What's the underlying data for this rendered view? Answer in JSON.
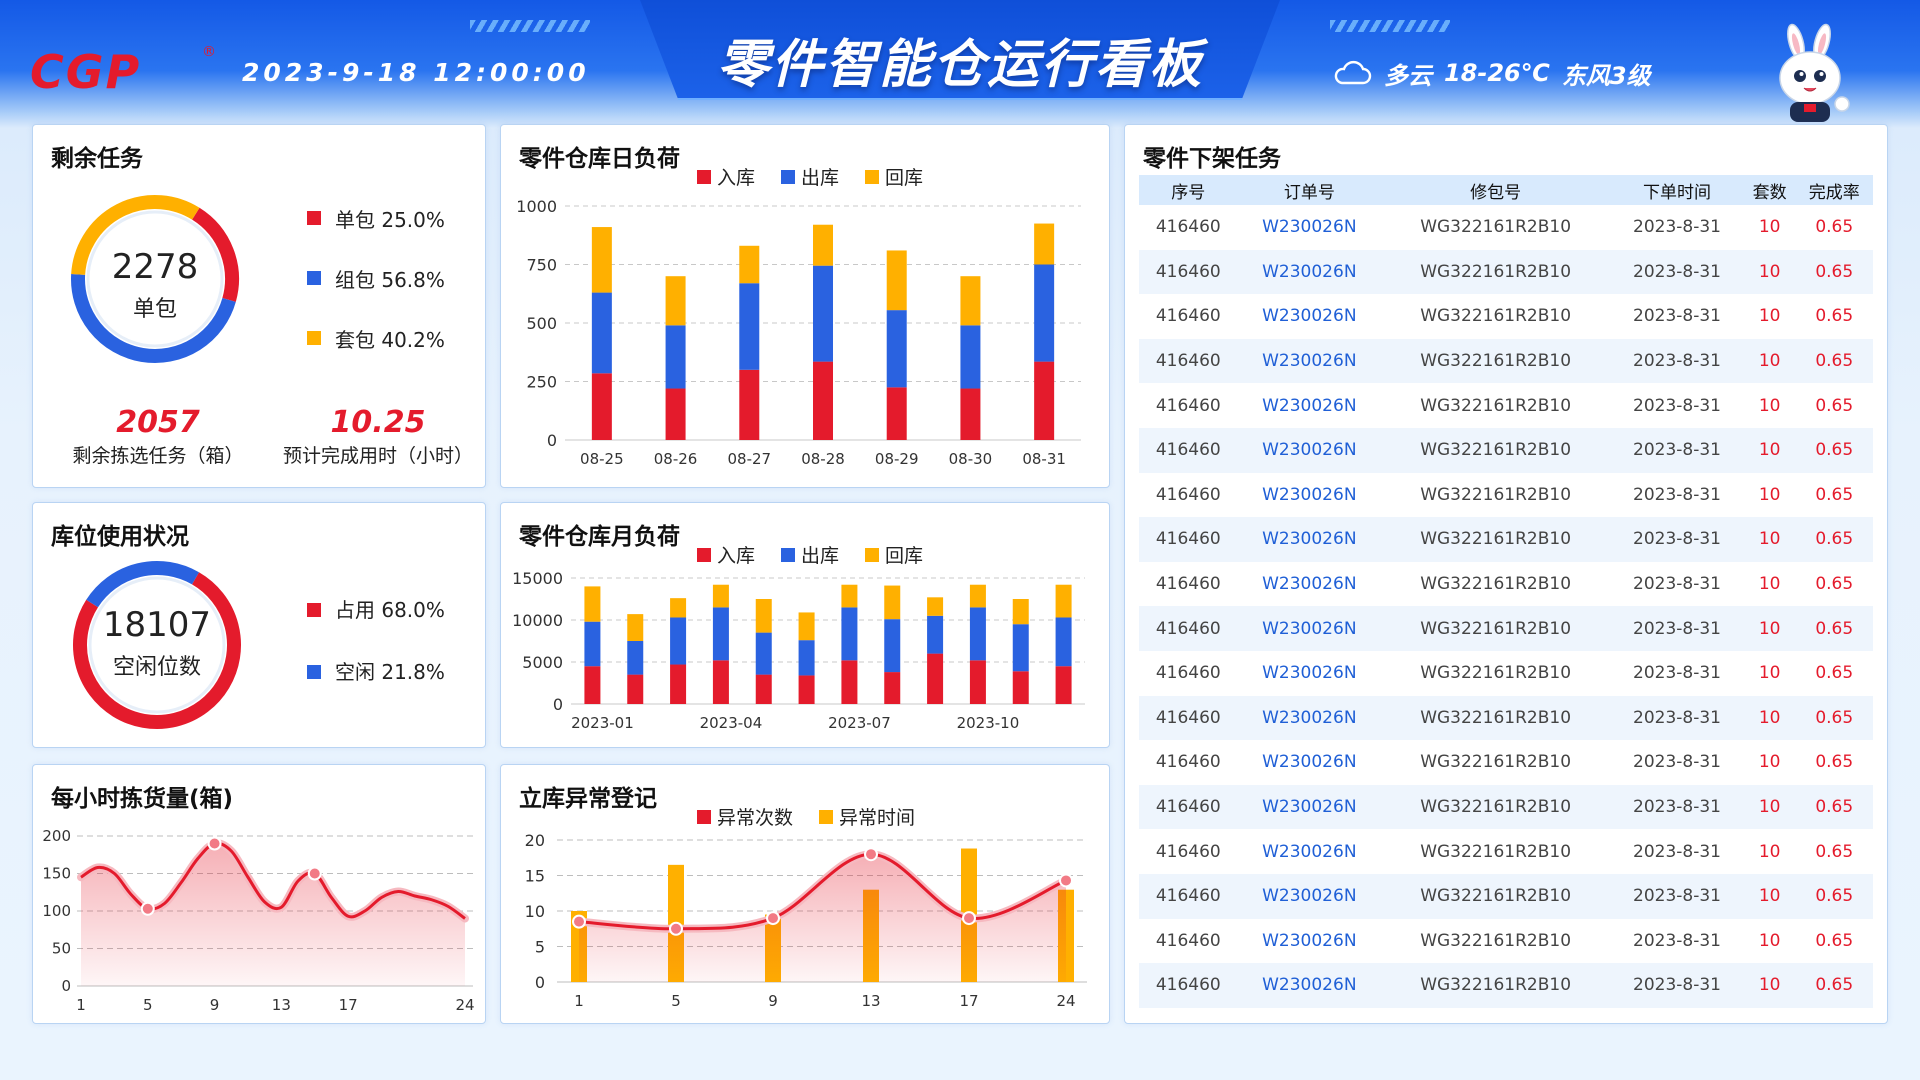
{
  "header": {
    "logo_text": "CGP",
    "logo_reg": "®",
    "datetime": "2023-9-18   12:00:00",
    "title": "零件智能仓运行看板",
    "weather": {
      "condition": "多云",
      "temp": "18-26℃",
      "wind": "东风3级",
      "icon": "cloud-icon"
    },
    "mascot_icon": "rabbit-mascot-icon"
  },
  "colors": {
    "red": "#e41b2c",
    "blue": "#2a62e0",
    "orange": "#ffb000"
  },
  "remaining": {
    "title": "剩余任务",
    "center_value": "2278",
    "center_label": "单包",
    "legend": [
      {
        "label": "单包",
        "value": "25.0%",
        "color": "#e41b2c",
        "share": 25.0
      },
      {
        "label": "组包",
        "value": "56.8%",
        "color": "#2a62e0",
        "share": 56.8
      },
      {
        "label": "套包",
        "value": "40.2%",
        "color": "#ffb000",
        "share": 40.2
      }
    ],
    "stat1_value": "2057",
    "stat1_label": "剩余拣选任务（箱）",
    "stat2_value": "10.25",
    "stat2_label": "预计完成用时（小时）"
  },
  "storage": {
    "title": "库位使用状况",
    "center_value": "18107",
    "center_label": "空闲位数",
    "legend": [
      {
        "label": "占用",
        "value": "68.0%",
        "color": "#e41b2c",
        "share": 68.0
      },
      {
        "label": "空闲",
        "value": "21.8%",
        "color": "#2a62e0",
        "share": 21.8
      }
    ]
  },
  "daily": {
    "title": "零件仓库日负荷",
    "chart_data": {
      "type": "bar",
      "stacked": true,
      "categories": [
        "08-25",
        "08-26",
        "08-27",
        "08-28",
        "08-29",
        "08-30",
        "08-31"
      ],
      "series": [
        {
          "name": "入库",
          "color": "#e41b2c",
          "values": [
            285,
            220,
            300,
            335,
            225,
            220,
            335
          ]
        },
        {
          "name": "出库",
          "color": "#2a62e0",
          "values": [
            345,
            270,
            370,
            410,
            330,
            270,
            415
          ]
        },
        {
          "name": "回库",
          "color": "#ffb000",
          "values": [
            280,
            210,
            160,
            175,
            255,
            210,
            175
          ]
        }
      ],
      "ylim": [
        0,
        1000
      ],
      "yticks": [
        0,
        250,
        500,
        750,
        1000
      ],
      "grid": true,
      "legend": "top"
    }
  },
  "monthly": {
    "title": "零件仓库月负荷",
    "chart_data": {
      "type": "bar",
      "stacked": true,
      "categories": [
        "2023-01",
        "2023-02",
        "2023-03",
        "2023-04",
        "2023-05",
        "2023-06",
        "2023-07",
        "2023-08",
        "2023-09",
        "2023-10",
        "2023-11",
        "2023-12"
      ],
      "xtick_labels": [
        "2023-01",
        "",
        "",
        "2023-04",
        "",
        "",
        "2023-07",
        "",
        "",
        "2023-10",
        "",
        ""
      ],
      "series": [
        {
          "name": "入库",
          "color": "#e41b2c",
          "values": [
            4500,
            3500,
            4700,
            5200,
            3500,
            3400,
            5200,
            3800,
            6000,
            5200,
            3900,
            4500
          ]
        },
        {
          "name": "出库",
          "color": "#2a62e0",
          "values": [
            5300,
            4000,
            5600,
            6300,
            5000,
            4200,
            6300,
            6300,
            4500,
            6300,
            5600,
            5800
          ]
        },
        {
          "name": "回库",
          "color": "#ffb000",
          "values": [
            4200,
            3200,
            2300,
            2700,
            4000,
            3300,
            2700,
            4000,
            2200,
            2700,
            3000,
            3900
          ]
        }
      ],
      "ylim": [
        0,
        15000
      ],
      "yticks": [
        0,
        5000,
        10000,
        15000
      ],
      "grid": true,
      "legend": "top"
    }
  },
  "hourly": {
    "title": "每小时拣货量(箱)",
    "chart_data": {
      "type": "area",
      "x": [
        1,
        2,
        3,
        4,
        5,
        6,
        7,
        8,
        9,
        10,
        11,
        12,
        13,
        14,
        15,
        16,
        17,
        18,
        19,
        20,
        21,
        22,
        23,
        24
      ],
      "values": [
        145,
        158,
        150,
        122,
        103,
        110,
        138,
        170,
        190,
        180,
        145,
        112,
        105,
        140,
        150,
        118,
        93,
        100,
        118,
        126,
        120,
        115,
        106,
        90
      ],
      "markers_x": [
        5,
        9,
        15
      ],
      "xtick_labels": [
        "1",
        "5",
        "9",
        "13",
        "17",
        "24"
      ],
      "ylim": [
        0,
        200
      ],
      "yticks": [
        0,
        50,
        100,
        150,
        200
      ],
      "grid": true
    }
  },
  "anomaly": {
    "title": "立库异常登记",
    "chart_data": {
      "type": "bar+line",
      "categories": [
        "1",
        "5",
        "9",
        "13",
        "17",
        "24"
      ],
      "series": [
        {
          "name": "异常次数",
          "type": "line",
          "color": "#e41b2c",
          "values": [
            8.5,
            7.5,
            9.0,
            18.0,
            9.0,
            14.3
          ]
        },
        {
          "name": "异常时间",
          "type": "bar",
          "color": "#ffb000",
          "values": [
            10.0,
            16.5,
            9.5,
            13.0,
            18.8,
            13.0
          ]
        }
      ],
      "ylim": [
        0,
        20
      ],
      "yticks": [
        0,
        5,
        10,
        15,
        20
      ],
      "grid": true,
      "legend": "top"
    }
  },
  "tasks": {
    "title": "零件下架任务",
    "columns": [
      "序号",
      "订单号",
      "修包号",
      "下单时间",
      "套数",
      "完成率"
    ],
    "rows": [
      [
        "416460",
        "W230026N",
        "WG322161R2B10",
        "2023-8-31",
        "10",
        "0.65"
      ],
      [
        "416460",
        "W230026N",
        "WG322161R2B10",
        "2023-8-31",
        "10",
        "0.65"
      ],
      [
        "416460",
        "W230026N",
        "WG322161R2B10",
        "2023-8-31",
        "10",
        "0.65"
      ],
      [
        "416460",
        "W230026N",
        "WG322161R2B10",
        "2023-8-31",
        "10",
        "0.65"
      ],
      [
        "416460",
        "W230026N",
        "WG322161R2B10",
        "2023-8-31",
        "10",
        "0.65"
      ],
      [
        "416460",
        "W230026N",
        "WG322161R2B10",
        "2023-8-31",
        "10",
        "0.65"
      ],
      [
        "416460",
        "W230026N",
        "WG322161R2B10",
        "2023-8-31",
        "10",
        "0.65"
      ],
      [
        "416460",
        "W230026N",
        "WG322161R2B10",
        "2023-8-31",
        "10",
        "0.65"
      ],
      [
        "416460",
        "W230026N",
        "WG322161R2B10",
        "2023-8-31",
        "10",
        "0.65"
      ],
      [
        "416460",
        "W230026N",
        "WG322161R2B10",
        "2023-8-31",
        "10",
        "0.65"
      ],
      [
        "416460",
        "W230026N",
        "WG322161R2B10",
        "2023-8-31",
        "10",
        "0.65"
      ],
      [
        "416460",
        "W230026N",
        "WG322161R2B10",
        "2023-8-31",
        "10",
        "0.65"
      ],
      [
        "416460",
        "W230026N",
        "WG322161R2B10",
        "2023-8-31",
        "10",
        "0.65"
      ],
      [
        "416460",
        "W230026N",
        "WG322161R2B10",
        "2023-8-31",
        "10",
        "0.65"
      ],
      [
        "416460",
        "W230026N",
        "WG322161R2B10",
        "2023-8-31",
        "10",
        "0.65"
      ],
      [
        "416460",
        "W230026N",
        "WG322161R2B10",
        "2023-8-31",
        "10",
        "0.65"
      ],
      [
        "416460",
        "W230026N",
        "WG322161R2B10",
        "2023-8-31",
        "10",
        "0.65"
      ],
      [
        "416460",
        "W230026N",
        "WG322161R2B10",
        "2023-8-31",
        "10",
        "0.65"
      ]
    ]
  }
}
